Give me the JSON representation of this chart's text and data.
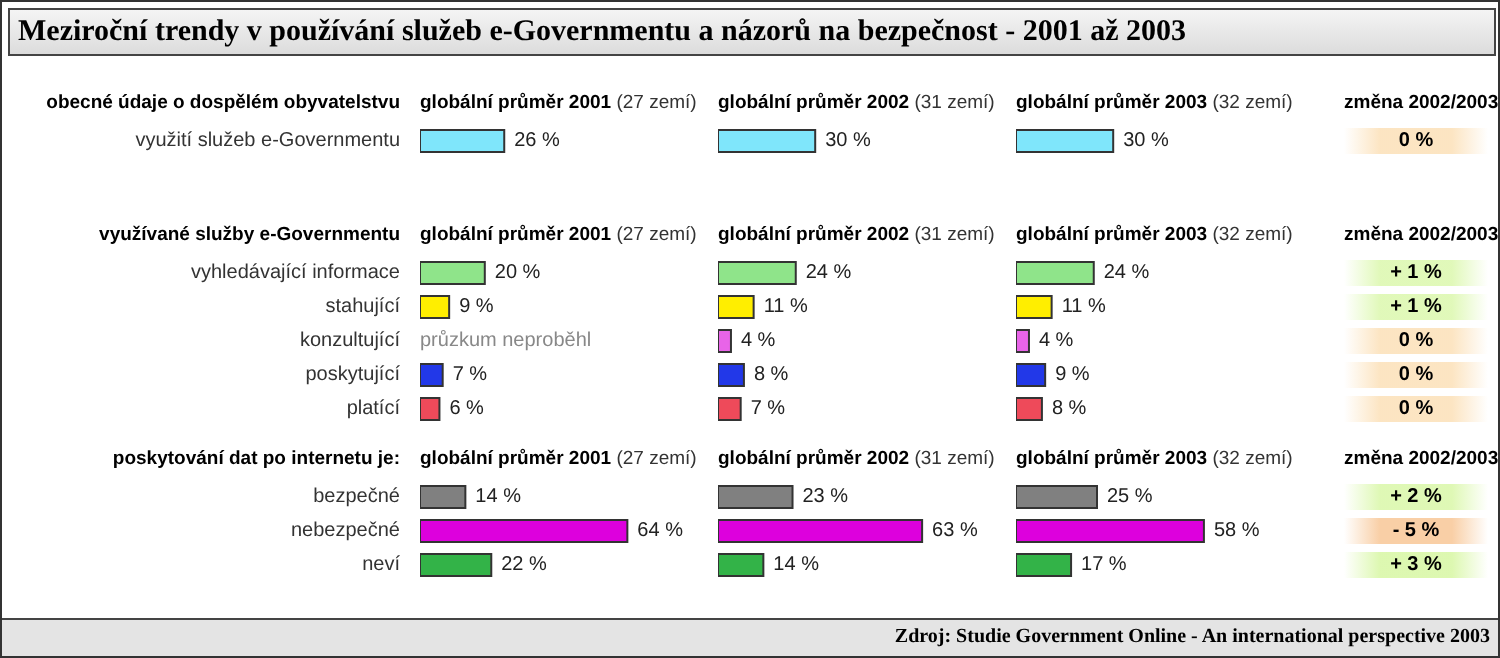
{
  "chart_data": [
    {
      "type": "bar",
      "orientation": "horizontal",
      "title": "Meziroční trendy v používání služeb e-Governmentu a názorů na bezpečnost - 2001 až 2003",
      "ylabel": "obecné údaje o dospělém obyvatelstvu",
      "subtitle": "globální průměr 2001 (27 zemí)",
      "categories": [
        "využití služeb e-Governmentu"
      ],
      "colors": [
        "#7fe6fb"
      ],
      "values": [
        26
      ],
      "value_labels": [
        "26 %"
      ]
    },
    {
      "type": "bar",
      "orientation": "horizontal",
      "subtitle": "globální průměr 2002 (31 zemí)",
      "categories": [
        null
      ],
      "colors": [
        "#7fe6fb"
      ],
      "values": [
        30
      ],
      "value_labels": [
        "30 %"
      ]
    },
    {
      "type": "bar",
      "orientation": "horizontal",
      "subtitle": "globální průměr 2003 (32 zemí)",
      "categories": [
        null
      ],
      "colors": [
        "#7fe6fb"
      ],
      "values": [
        30
      ],
      "value_labels": [
        "30 %"
      ]
    },
    {
      "type": "other",
      "subtitle": "změna 2002/2003",
      "colors": [
        "#fbdcae"
      ],
      "values": [
        0
      ],
      "value_labels": [
        "0 %"
      ]
    },
    {
      "type": "bar",
      "orientation": "horizontal",
      "ylabel": "využívané služby e-Governmentu",
      "subtitle": "globální průměr 2001 (27 zemí)",
      "categories": [
        "vyhledávající informace",
        "stahující",
        "konzultující",
        "poskytující",
        "platící"
      ],
      "colors": [
        "#8fe48a",
        "#ffee00",
        "#e864e8",
        "#2238e8",
        "#ee4a5a"
      ],
      "values": [
        20,
        9,
        null,
        7,
        6
      ],
      "value_labels": [
        "20 %",
        "9 %",
        "průzkum neproběhl",
        "7 %",
        "6 %"
      ]
    },
    {
      "type": "bar",
      "orientation": "horizontal",
      "subtitle": "globální průměr 2002 (31 zemí)",
      "categories": [
        null,
        null,
        null,
        null,
        null
      ],
      "colors": [
        "#8fe48a",
        "#ffee00",
        "#e864e8",
        "#2238e8",
        "#ee4a5a"
      ],
      "values": [
        24,
        11,
        4,
        8,
        7
      ],
      "value_labels": [
        "24 %",
        "11 %",
        "4 %",
        "8 %",
        "7 %"
      ]
    },
    {
      "type": "bar",
      "orientation": "horizontal",
      "subtitle": "globální průměr 2003 (32 zemí)",
      "categories": [
        null,
        null,
        null,
        null,
        null
      ],
      "colors": [
        "#8fe48a",
        "#ffee00",
        "#e864e8",
        "#2238e8",
        "#ee4a5a"
      ],
      "values": [
        24,
        11,
        4,
        9,
        8
      ],
      "value_labels": [
        "24 %",
        "11 %",
        "4 %",
        "9 %",
        "8 %"
      ]
    },
    {
      "type": "other",
      "subtitle": "změna 2002/2003",
      "colors": [
        "#d9f7a8",
        "#d9f7a8",
        "#fbdcae",
        "#fbdcae",
        "#fbdcae"
      ],
      "values": [
        1,
        1,
        0,
        0,
        0
      ],
      "value_labels": [
        "+ 1 %",
        "+ 1 %",
        "0 %",
        "0 %",
        "0 %"
      ]
    },
    {
      "type": "bar",
      "orientation": "horizontal",
      "ylabel": "poskytování dat po internetu je:",
      "subtitle": "globální průměr 2001 (27 zemí)",
      "categories": [
        "bezpečné",
        "nebezpečné",
        "neví"
      ],
      "colors": [
        "#808080",
        "#dd00dd",
        "#33b348"
      ],
      "values": [
        14,
        64,
        22
      ],
      "value_labels": [
        "14 %",
        "64 %",
        "22 %"
      ]
    },
    {
      "type": "bar",
      "orientation": "horizontal",
      "subtitle": "globální průměr 2002 (31 zemí)",
      "categories": [
        null,
        null,
        null
      ],
      "colors": [
        "#808080",
        "#dd00dd",
        "#33b348"
      ],
      "values": [
        23,
        63,
        14
      ],
      "value_labels": [
        "23 %",
        "63 %",
        "14 %"
      ]
    },
    {
      "type": "bar",
      "orientation": "horizontal",
      "subtitle": "globální průměr 2003 (32 zemí)",
      "categories": [
        null,
        null,
        null
      ],
      "colors": [
        "#808080",
        "#dd00dd",
        "#33b348"
      ],
      "values": [
        25,
        58,
        17
      ],
      "value_labels": [
        "25 %",
        "58 %",
        "17 %"
      ]
    },
    {
      "type": "other",
      "subtitle": "změna 2002/2003",
      "colors": [
        "#d9f7a8",
        "#f9cfa6",
        "#d9f7a8"
      ],
      "values": [
        2,
        -5,
        3
      ],
      "value_labels": [
        "+ 2 %",
        "- 5 %",
        "+ 3 %"
      ],
      "annotations": [
        "Zdroj: Studie Government Online - An international perspective 2003"
      ]
    }
  ]
}
